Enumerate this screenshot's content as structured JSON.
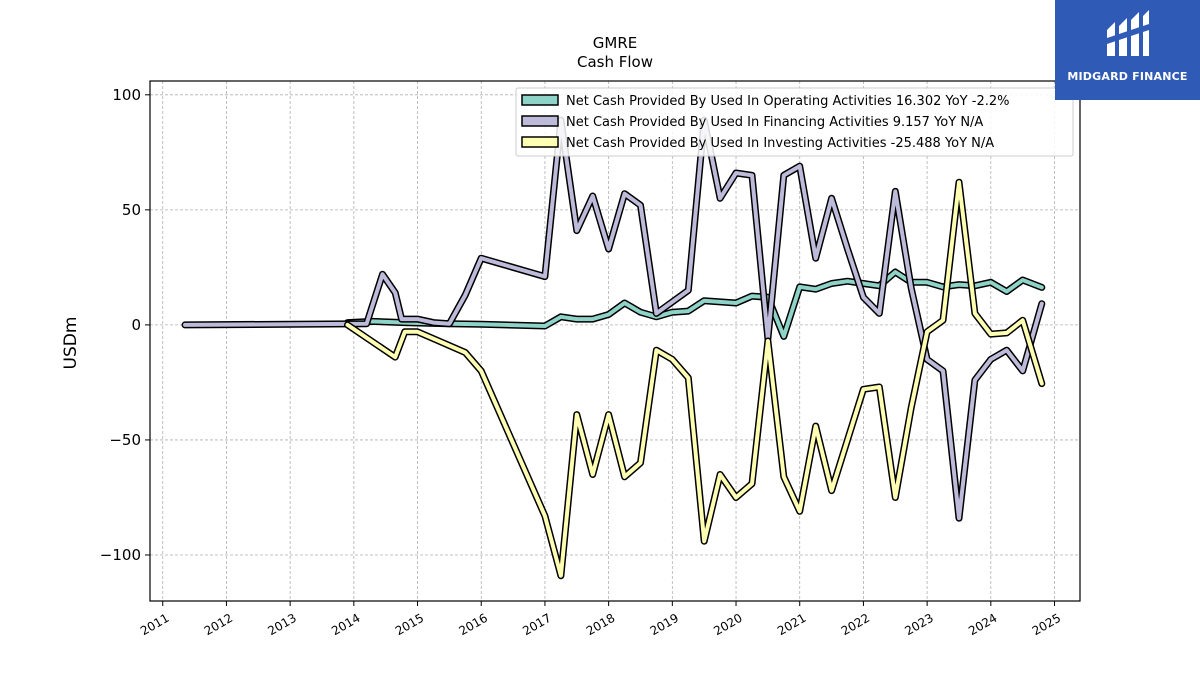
{
  "logo": {
    "text": "MIDGARD FINANCE"
  },
  "chart_data": {
    "type": "line",
    "title": "GMRE",
    "subtitle": "Cash Flow",
    "xlabel": "",
    "ylabel": "USDm",
    "xlim": [
      2010.8,
      2025.4
    ],
    "ylim": [
      -120,
      106
    ],
    "x_ticks": [
      2011,
      2012,
      2013,
      2014,
      2015,
      2016,
      2017,
      2018,
      2019,
      2020,
      2021,
      2022,
      2023,
      2024,
      2025
    ],
    "y_ticks": [
      100,
      50,
      0,
      -50,
      -100
    ],
    "y_tick_labels": [
      "100",
      "50",
      "0",
      "−50",
      "−100"
    ],
    "grid": true,
    "legend_position": "top-right",
    "series": [
      {
        "name": "Net Cash Provided By Used In Operating Activities  16.302 YoY -2.2%",
        "color": "#8dd3c7",
        "x": [
          2013.9,
          2014.3,
          2014.6,
          2014.8,
          2015.1,
          2015.5,
          2016.0,
          2017.0,
          2017.25,
          2017.5,
          2017.75,
          2018.0,
          2018.25,
          2018.5,
          2018.75,
          2019.0,
          2019.25,
          2019.5,
          2019.75,
          2020.0,
          2020.25,
          2020.5,
          2020.75,
          2021.0,
          2021.25,
          2021.5,
          2021.75,
          2022.0,
          2022.25,
          2022.5,
          2022.75,
          2023.0,
          2023.25,
          2023.5,
          2023.75,
          2024.0,
          2024.25,
          2024.5,
          2024.8
        ],
        "values": [
          1,
          1.5,
          1.2,
          1.0,
          0.8,
          0.5,
          0.3,
          -0.5,
          3.5,
          2.5,
          2.5,
          4.5,
          9.5,
          5.5,
          3.5,
          5.5,
          6.0,
          10.5,
          10.0,
          9.5,
          12.5,
          12.0,
          -5.0,
          16.5,
          15.5,
          18.0,
          19.0,
          18.0,
          17.0,
          23.0,
          18.5,
          18.5,
          16.5,
          17.5,
          17.0,
          18.5,
          14.5,
          19.5,
          16.3
        ]
      },
      {
        "name": "Net Cash Provided By Used In Financing Activities  9.157 YoY N/A",
        "color": "#bebada",
        "x": [
          2011.35,
          2014.2,
          2014.45,
          2014.65,
          2014.75,
          2015.0,
          2015.25,
          2015.5,
          2015.75,
          2016.0,
          2017.0,
          2017.25,
          2017.5,
          2017.75,
          2018.0,
          2018.25,
          2018.5,
          2018.75,
          2019.0,
          2019.25,
          2019.5,
          2019.75,
          2020.0,
          2020.25,
          2020.5,
          2020.75,
          2021.0,
          2021.25,
          2021.5,
          2021.75,
          2022.0,
          2022.25,
          2022.5,
          2022.75,
          2023.0,
          2023.25,
          2023.5,
          2023.75,
          2024.0,
          2024.25,
          2024.5,
          2024.8
        ],
        "values": [
          0,
          0.5,
          22,
          14,
          2.5,
          2.5,
          1,
          0.5,
          13,
          29,
          21,
          89,
          41,
          56,
          33,
          57,
          52,
          5,
          10,
          15,
          89,
          55,
          66,
          65,
          -6,
          65,
          69,
          29,
          55,
          33,
          12,
          5,
          58,
          16,
          -15,
          -20,
          -84,
          -24,
          -15,
          -11,
          -20,
          9.2
        ]
      },
      {
        "name": "Net Cash Provided By Used In Investing Activities  -25.488 YoY N/A",
        "color": "#ffffb3",
        "x": [
          2013.9,
          2014.65,
          2014.8,
          2015.0,
          2015.25,
          2015.75,
          2016.0,
          2017.0,
          2017.25,
          2017.5,
          2017.75,
          2018.0,
          2018.25,
          2018.5,
          2018.75,
          2019.0,
          2019.25,
          2019.5,
          2019.75,
          2020.0,
          2020.25,
          2020.5,
          2020.75,
          2021.0,
          2021.25,
          2021.5,
          2021.75,
          2022.0,
          2022.25,
          2022.5,
          2022.75,
          2023.0,
          2023.25,
          2023.5,
          2023.75,
          2024.0,
          2024.25,
          2024.5,
          2024.8
        ],
        "values": [
          0,
          -14,
          -3,
          -3,
          -6,
          -12,
          -20,
          -83,
          -109,
          -39,
          -65,
          -39,
          -66,
          -60,
          -11,
          -15,
          -23,
          -94,
          -65,
          -75,
          -69,
          -7,
          -66,
          -81,
          -44,
          -72,
          -50,
          -28,
          -27,
          -75,
          -36,
          -3,
          2,
          62,
          5,
          -4,
          -3.5,
          2,
          -25.5
        ]
      }
    ]
  }
}
